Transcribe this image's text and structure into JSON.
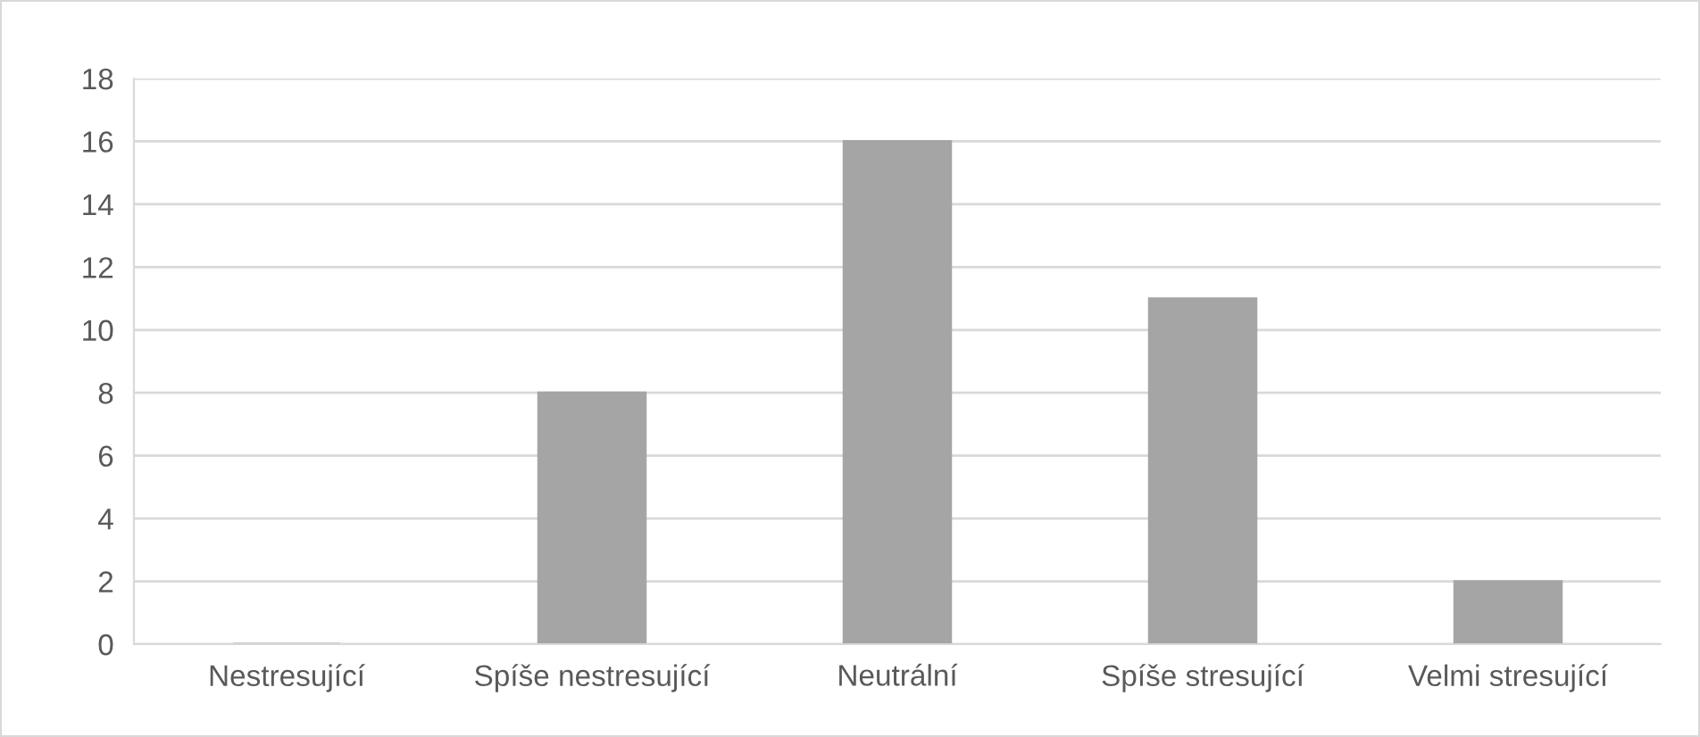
{
  "chart_data": {
    "type": "bar",
    "categories": [
      "Nestresující",
      "Spíše nestresující",
      "Neutrální",
      "Spíše stresující",
      "Velmi stresující"
    ],
    "values": [
      0,
      8,
      16,
      11,
      2
    ],
    "color": "#a5a5a5",
    "ylim": [
      0,
      18
    ],
    "yticks": [
      0,
      2,
      4,
      6,
      8,
      10,
      12,
      14,
      16,
      18
    ],
    "grid": "y",
    "legend": false
  }
}
